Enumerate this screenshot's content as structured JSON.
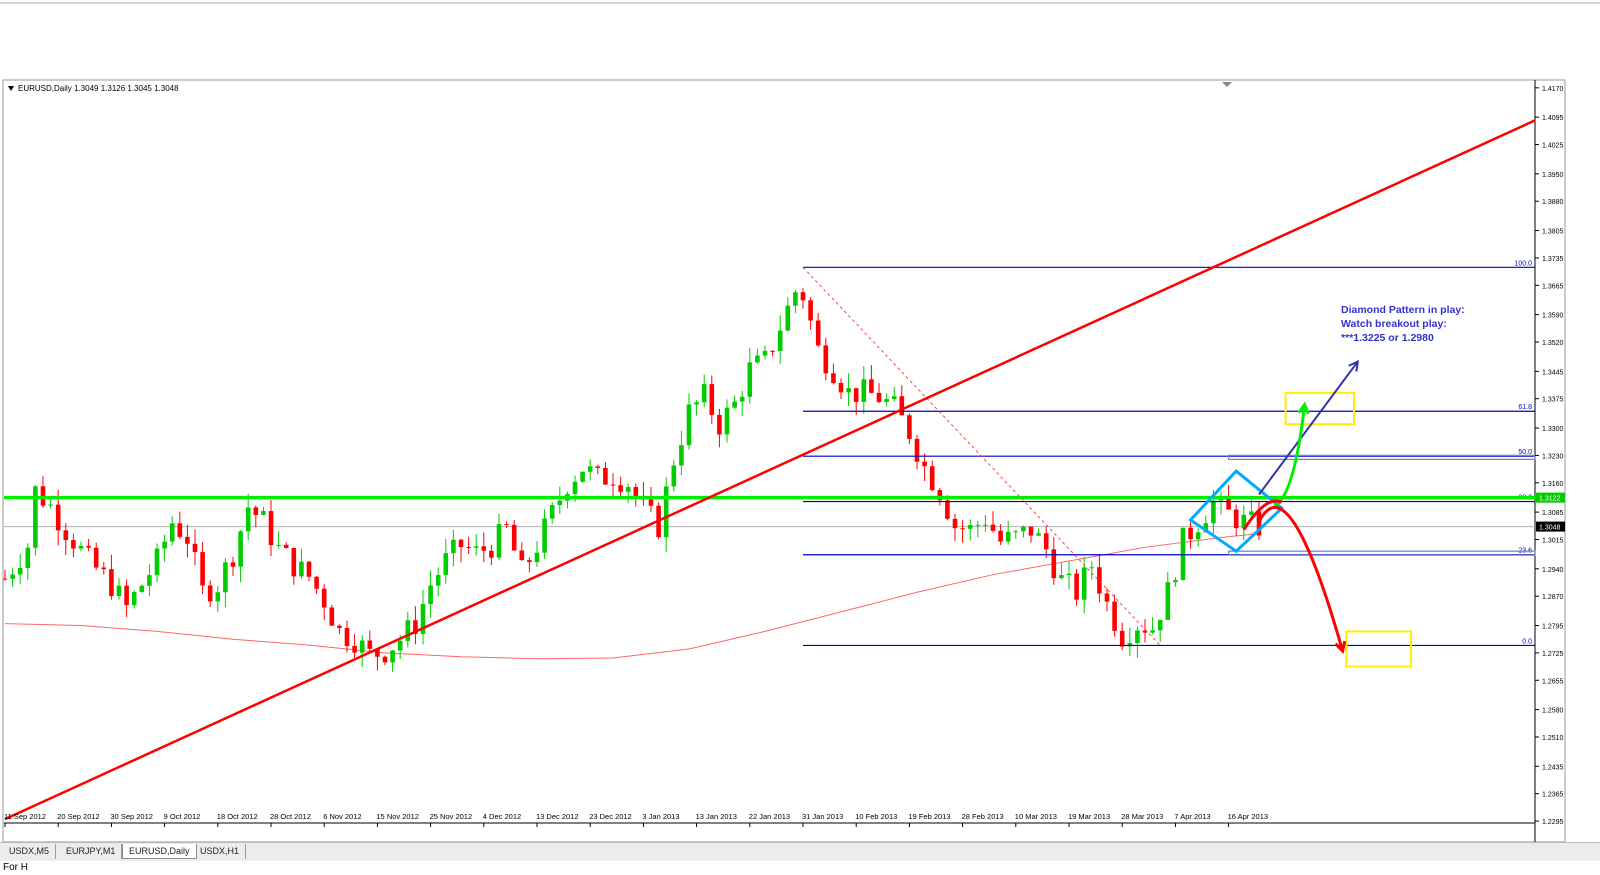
{
  "symbol_info": "EURUSD,Daily  1.3049 1.3126 1.3045 1.3048",
  "tabs": [
    {
      "label": "USDX,M5",
      "active": false
    },
    {
      "label": "EURJPY,M1",
      "active": false
    },
    {
      "label": "EURUSD,Daily",
      "active": true
    },
    {
      "label": "USDX,H1",
      "active": false
    }
  ],
  "status_text": "For H",
  "colors": {
    "bull": "#00cc00",
    "bear": "#ff0000",
    "fib": "#0000cc",
    "trendline": "#ff0000",
    "support": "#00ee00",
    "diamond": "#00aaff",
    "target_box": "#ffee00",
    "price_label_bg": "#000000",
    "resistance_label_bg": "#00cc00"
  },
  "annotation_lines": [
    "Diamond Pattern in play:",
    "Watch breakout play:",
    "***1.3225 or 1.2980"
  ],
  "chart_data": {
    "type": "candlestick",
    "symbol": "EURUSD",
    "timeframe": "Daily",
    "ylim": [
      1.229,
      1.419
    ],
    "y_ticks": [
      "1.4170",
      "1.4095",
      "1.4025",
      "1.3950",
      "1.3880",
      "1.3805",
      "1.3735",
      "1.3665",
      "1.3590",
      "1.3520",
      "1.3445",
      "1.3375",
      "1.3300",
      "1.3230",
      "1.3160",
      "1.3085",
      "1.3015",
      "1.2940",
      "1.2870",
      "1.2795",
      "1.2725",
      "1.2655",
      "1.2580",
      "1.2510",
      "1.2435",
      "1.2365",
      "1.2295"
    ],
    "x_ticks": [
      {
        "label": "11 Sep 2012",
        "index": 0
      },
      {
        "label": "20 Sep 2012",
        "index": 7
      },
      {
        "label": "30 Sep 2012",
        "index": 14
      },
      {
        "label": "9 Oct 2012",
        "index": 21
      },
      {
        "label": "18 Oct 2012",
        "index": 28
      },
      {
        "label": "28 Oct 2012",
        "index": 35
      },
      {
        "label": "6 Nov 2012",
        "index": 42
      },
      {
        "label": "15 Nov 2012",
        "index": 49
      },
      {
        "label": "25 Nov 2012",
        "index": 56
      },
      {
        "label": "4 Dec 2012",
        "index": 63
      },
      {
        "label": "13 Dec 2012",
        "index": 70
      },
      {
        "label": "23 Dec 2012",
        "index": 77
      },
      {
        "label": "3 Jan 2013",
        "index": 84
      },
      {
        "label": "13 Jan 2013",
        "index": 91
      },
      {
        "label": "22 Jan 2013",
        "index": 98
      },
      {
        "label": "31 Jan 2013",
        "index": 105
      },
      {
        "label": "10 Feb 2013",
        "index": 112
      },
      {
        "label": "19 Feb 2013",
        "index": 119
      },
      {
        "label": "28 Feb 2013",
        "index": 126
      },
      {
        "label": "10 Mar 2013",
        "index": 133
      },
      {
        "label": "19 Mar 2013",
        "index": 140
      },
      {
        "label": "28 Mar 2013",
        "index": 147
      },
      {
        "label": "7 Apr 2013",
        "index": 154
      },
      {
        "label": "16 Apr 2013",
        "index": 161
      }
    ],
    "current_price": {
      "value": 1.3048,
      "label": "1.3048"
    },
    "horizontal_support": {
      "value": 1.3122,
      "label": "1.3122"
    },
    "fibonacci": {
      "high": 1.3711,
      "low": 1.2744,
      "levels": [
        {
          "label": "100.0",
          "value": 1.3711
        },
        {
          "label": "61.8",
          "value": 1.3343
        },
        {
          "label": "50.0",
          "value": 1.3228
        },
        {
          "label": "38.2",
          "value": 1.3112
        },
        {
          "label": "23.6",
          "value": 1.2976
        },
        {
          "label": "0.0",
          "value": 1.2744
        }
      ]
    },
    "breakout_levels": [
      1.3225,
      1.298
    ],
    "close_path": [
      [
        0,
        1.2915
      ],
      [
        3,
        1.3
      ],
      [
        4,
        1.314
      ],
      [
        6,
        1.31
      ],
      [
        8,
        1.304
      ],
      [
        11,
        1.296
      ],
      [
        14,
        1.29
      ],
      [
        16,
        1.284
      ],
      [
        18,
        1.29
      ],
      [
        20,
        1.296
      ],
      [
        22,
        1.306
      ],
      [
        24,
        1.302
      ],
      [
        26,
        1.288
      ],
      [
        28,
        1.29
      ],
      [
        30,
        1.298
      ],
      [
        32,
        1.31
      ],
      [
        34,
        1.306
      ],
      [
        36,
        1.299
      ],
      [
        38,
        1.295
      ],
      [
        40,
        1.292
      ],
      [
        42,
        1.286
      ],
      [
        44,
        1.278
      ],
      [
        46,
        1.276
      ],
      [
        48,
        1.272
      ],
      [
        50,
        1.273
      ],
      [
        52,
        1.276
      ],
      [
        54,
        1.28
      ],
      [
        56,
        1.29
      ],
      [
        58,
        1.296
      ],
      [
        60,
        1.3
      ],
      [
        62,
        1.298
      ],
      [
        64,
        1.3
      ],
      [
        66,
        1.304
      ],
      [
        68,
        1.293
      ],
      [
        70,
        1.3
      ],
      [
        72,
        1.308
      ],
      [
        74,
        1.316
      ],
      [
        76,
        1.32
      ],
      [
        78,
        1.317
      ],
      [
        80,
        1.318
      ],
      [
        82,
        1.316
      ],
      [
        84,
        1.309
      ],
      [
        86,
        1.305
      ],
      [
        88,
        1.322
      ],
      [
        90,
        1.334
      ],
      [
        92,
        1.338
      ],
      [
        94,
        1.331
      ],
      [
        96,
        1.336
      ],
      [
        98,
        1.345
      ],
      [
        100,
        1.347
      ],
      [
        102,
        1.356
      ],
      [
        104,
        1.365
      ],
      [
        105,
        1.364
      ],
      [
        107,
        1.35
      ],
      [
        109,
        1.345
      ],
      [
        111,
        1.339
      ],
      [
        113,
        1.339
      ],
      [
        115,
        1.338
      ],
      [
        117,
        1.335
      ],
      [
        119,
        1.329
      ],
      [
        121,
        1.32
      ],
      [
        123,
        1.314
      ],
      [
        125,
        1.305
      ],
      [
        127,
        1.304
      ],
      [
        129,
        1.307
      ],
      [
        131,
        1.301
      ],
      [
        133,
        1.302
      ],
      [
        135,
        1.304
      ],
      [
        137,
        1.299
      ],
      [
        139,
        1.291
      ],
      [
        141,
        1.288
      ],
      [
        143,
        1.295
      ],
      [
        145,
        1.285
      ],
      [
        147,
        1.277
      ],
      [
        149,
        1.28
      ],
      [
        151,
        1.279
      ],
      [
        153,
        1.288
      ],
      [
        155,
        1.301
      ],
      [
        157,
        1.306
      ],
      [
        159,
        1.311
      ],
      [
        161,
        1.308
      ],
      [
        163,
        1.306
      ],
      [
        165,
        1.3048
      ]
    ],
    "moving_average_path": [
      [
        0,
        1.28
      ],
      [
        10,
        1.2795
      ],
      [
        20,
        1.278
      ],
      [
        30,
        1.276
      ],
      [
        40,
        1.2745
      ],
      [
        50,
        1.2725
      ],
      [
        60,
        1.2715
      ],
      [
        70,
        1.271
      ],
      [
        80,
        1.2712
      ],
      [
        90,
        1.2735
      ],
      [
        100,
        1.278
      ],
      [
        110,
        1.283
      ],
      [
        120,
        1.288
      ],
      [
        130,
        1.2925
      ],
      [
        140,
        1.296
      ],
      [
        150,
        1.2995
      ],
      [
        160,
        1.302
      ],
      [
        165,
        1.303
      ]
    ],
    "trendline": {
      "p1": [
        0,
        1.23
      ],
      "p2": [
        160,
        1.372
      ]
    },
    "fib_swing_line": {
      "p1": [
        105,
        1.3711
      ],
      "p2": [
        152,
        1.2744
      ]
    },
    "diamond": {
      "left": [
        156,
        1.3065
      ],
      "top": [
        162,
        1.319
      ],
      "right": [
        168,
        1.3095
      ],
      "bottom": [
        162,
        1.2985
      ]
    },
    "green_projection": {
      "from": [
        167,
        1.31
      ],
      "to": [
        171,
        1.336
      ]
    },
    "red_projection": {
      "from": [
        165,
        1.306
      ],
      "to": [
        176,
        1.273
      ]
    },
    "blue_projection": {
      "from": [
        165,
        1.313
      ],
      "to": [
        178,
        1.347
      ]
    },
    "target_boxes": [
      {
        "name": "upper",
        "x": [
          168.5,
          177.5
        ],
        "y": [
          1.331,
          1.339
        ]
      },
      {
        "name": "lower",
        "x": [
          176.5,
          185
        ],
        "y": [
          1.269,
          1.278
        ]
      }
    ]
  }
}
